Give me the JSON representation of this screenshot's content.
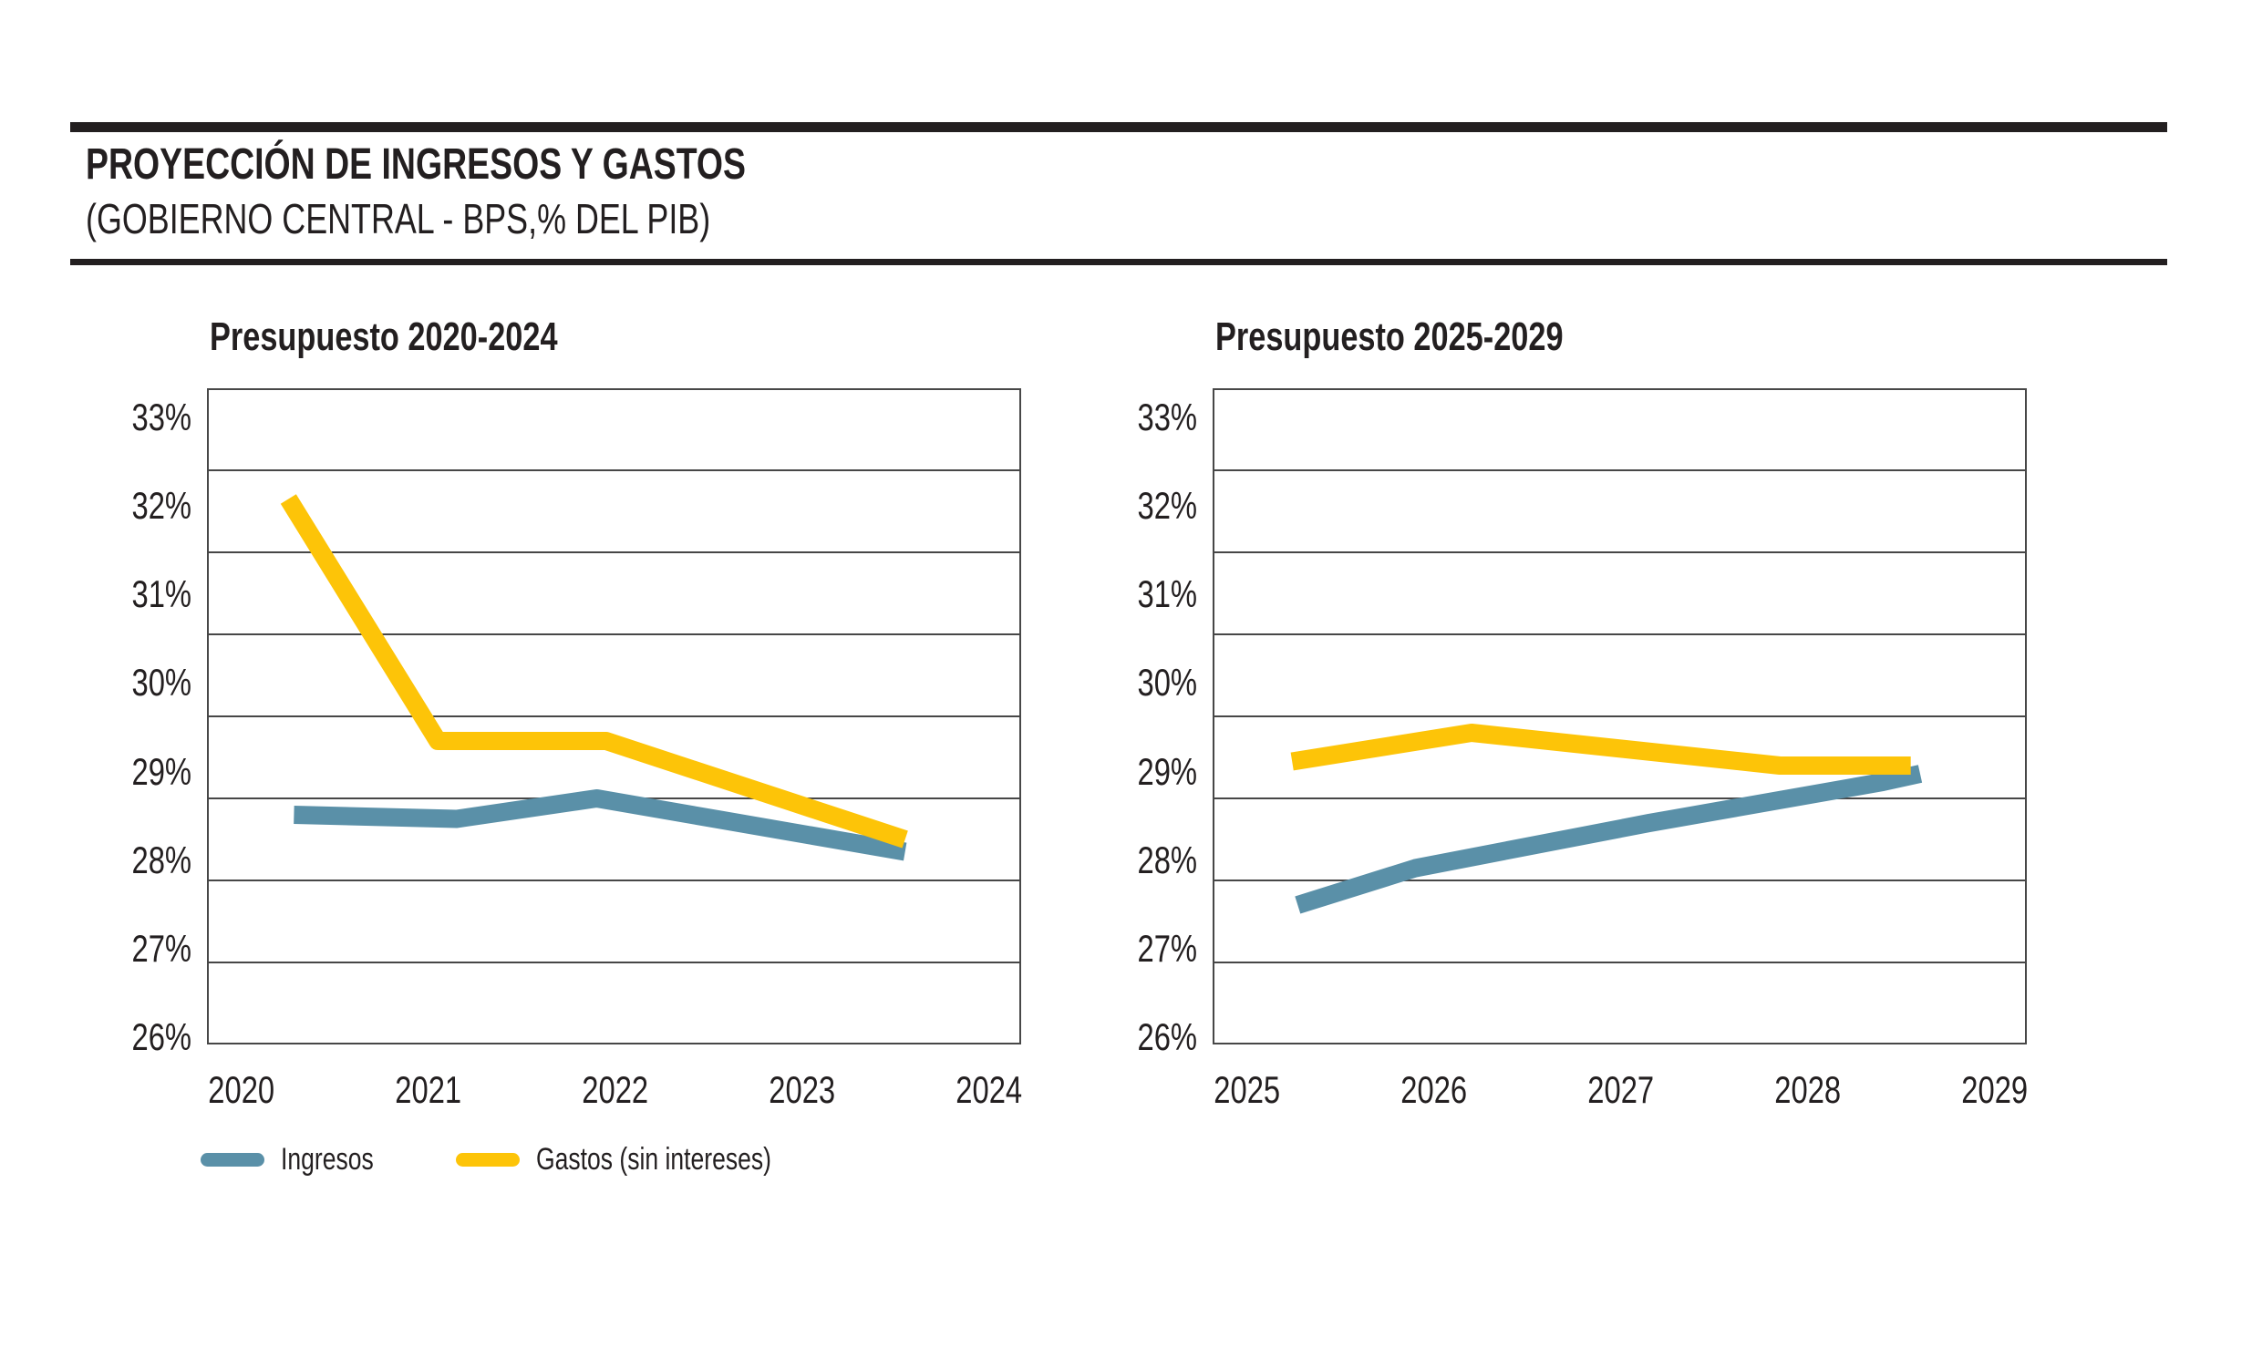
{
  "header": {
    "title": "PROYECCIÓN DE INGRESOS Y GASTOS",
    "subtitle": "(GOBIERNO CENTRAL - BPS,% DEL PIB)"
  },
  "colors": {
    "ingresos": "#5a90a8",
    "gastos": "#fdc408",
    "text": "#231f20",
    "grid": "#474747",
    "rule": "#231f20"
  },
  "legend": [
    {
      "label": "Ingresos",
      "series": "ingresos"
    },
    {
      "label": "Gastos (sin intereses)",
      "series": "gastos"
    }
  ],
  "chart_data": [
    {
      "type": "line",
      "title": "Presupuesto 2020-2024",
      "x_ticks": [
        "2020",
        "2021",
        "2022",
        "2023",
        "2024"
      ],
      "y_ticks": [
        "33%",
        "32%",
        "31%",
        "30%",
        "29%",
        "28%",
        "27%",
        "26%"
      ],
      "ylim": [
        26,
        34
      ],
      "gridline_step": 1,
      "grid": "horizontal",
      "legend_position": "bottom-left",
      "series": [
        {
          "name": "Ingresos",
          "color_key": "ingresos",
          "points": [
            {
              "x": 2020.28,
              "y": 28.8
            },
            {
              "x": 2021.15,
              "y": 28.75
            },
            {
              "x": 2021.9,
              "y": 29.0
            },
            {
              "x": 2023.55,
              "y": 28.35
            }
          ]
        },
        {
          "name": "Gastos (sin intereses)",
          "color_key": "gastos",
          "points": [
            {
              "x": 2020.25,
              "y": 32.65
            },
            {
              "x": 2021.05,
              "y": 29.7
            },
            {
              "x": 2021.95,
              "y": 29.7
            },
            {
              "x": 2023.55,
              "y": 28.5
            }
          ]
        }
      ]
    },
    {
      "type": "line",
      "title": "Presupuesto 2025-2029",
      "x_ticks": [
        "2025",
        "2026",
        "2027",
        "2028",
        "2029"
      ],
      "y_ticks": [
        "33%",
        "32%",
        "31%",
        "30%",
        "29%",
        "28%",
        "27%",
        "26%"
      ],
      "ylim": [
        26,
        34
      ],
      "gridline_step": 1,
      "grid": "horizontal",
      "legend_position": "none",
      "series": [
        {
          "name": "Ingresos",
          "color_key": "ingresos",
          "points": [
            {
              "x": 2025.27,
              "y": 27.7
            },
            {
              "x": 2025.9,
              "y": 28.15
            },
            {
              "x": 2027.15,
              "y": 28.7
            },
            {
              "x": 2028.4,
              "y": 29.2
            },
            {
              "x": 2028.6,
              "y": 29.3
            }
          ]
        },
        {
          "name": "Gastos (sin intereses)",
          "color_key": "gastos",
          "points": [
            {
              "x": 2025.24,
              "y": 29.45
            },
            {
              "x": 2026.2,
              "y": 29.8
            },
            {
              "x": 2027.85,
              "y": 29.4
            },
            {
              "x": 2028.55,
              "y": 29.4
            }
          ]
        }
      ]
    }
  ]
}
